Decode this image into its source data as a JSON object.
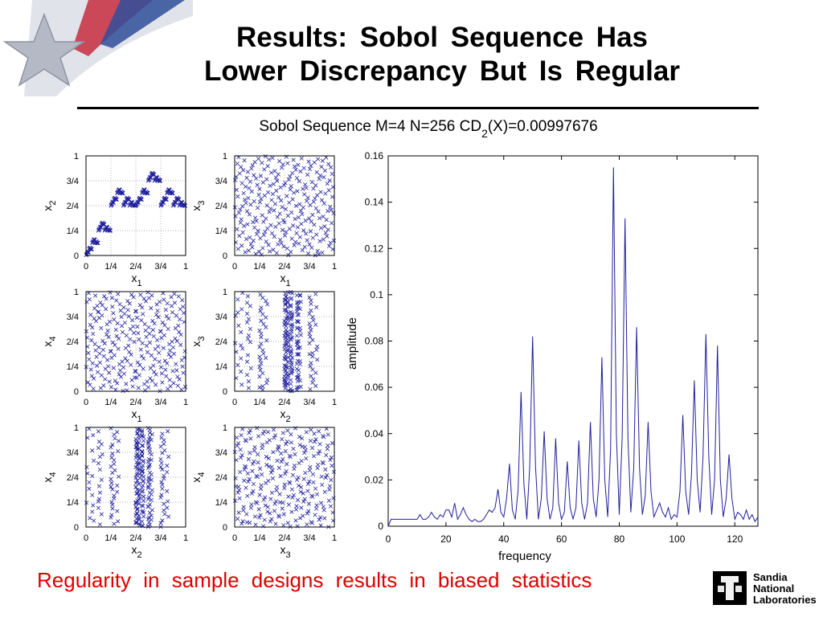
{
  "slide": {
    "title_line1": "Results:  Sobol  Sequence  Has",
    "title_line2": "Lower  Discrepancy  But  Is  Regular",
    "footer": "Regularity  in  sample  designs  results  in  biased  statistics",
    "logo": {
      "line1": "Sandia",
      "line2": "National",
      "line3": "Laboratories"
    }
  },
  "figure": {
    "title_main": "Sobol Sequence M=4 N=256 CD",
    "title_sub": "2",
    "title_tail": "(X)=0.00997676"
  },
  "colors": {
    "marker": "#1f1f9e",
    "line": "#1f1f9e",
    "title": "#000000",
    "footer": "#e00000"
  },
  "chart_data": [
    {
      "type": "scatter",
      "marker": "x",
      "n_points": 256,
      "xlabel": "x",
      "xlabel_sub": "1",
      "ylabel": "x",
      "ylabel_sub": "2",
      "xlim": [
        0,
        1
      ],
      "ylim": [
        0,
        1
      ],
      "ticks": [
        "0",
        "1/4",
        "2/4",
        "3/4",
        "1"
      ],
      "grid": "dotted"
    },
    {
      "type": "scatter",
      "marker": "x",
      "n_points": 256,
      "xlabel": "x",
      "xlabel_sub": "1",
      "ylabel": "x",
      "ylabel_sub": "3",
      "xlim": [
        0,
        1
      ],
      "ylim": [
        0,
        1
      ],
      "ticks": [
        "0",
        "1/4",
        "2/4",
        "3/4",
        "1"
      ],
      "grid": "dotted"
    },
    {
      "type": "scatter",
      "marker": "x",
      "n_points": 256,
      "xlabel": "x",
      "xlabel_sub": "1",
      "ylabel": "x",
      "ylabel_sub": "4",
      "xlim": [
        0,
        1
      ],
      "ylim": [
        0,
        1
      ],
      "ticks": [
        "0",
        "1/4",
        "2/4",
        "3/4",
        "1"
      ],
      "grid": "dotted"
    },
    {
      "type": "scatter",
      "marker": "x",
      "n_points": 256,
      "xlabel": "x",
      "xlabel_sub": "2",
      "ylabel": "x",
      "ylabel_sub": "3",
      "xlim": [
        0,
        1
      ],
      "ylim": [
        0,
        1
      ],
      "ticks": [
        "0",
        "1/4",
        "2/4",
        "3/4",
        "1"
      ],
      "grid": "dotted"
    },
    {
      "type": "scatter",
      "marker": "x",
      "n_points": 256,
      "xlabel": "x",
      "xlabel_sub": "2",
      "ylabel": "x",
      "ylabel_sub": "4",
      "xlim": [
        0,
        1
      ],
      "ylim": [
        0,
        1
      ],
      "ticks": [
        "0",
        "1/4",
        "2/4",
        "3/4",
        "1"
      ],
      "grid": "dotted"
    },
    {
      "type": "scatter",
      "marker": "x",
      "n_points": 256,
      "xlabel": "x",
      "xlabel_sub": "3",
      "ylabel": "x",
      "ylabel_sub": "4",
      "xlim": [
        0,
        1
      ],
      "ylim": [
        0,
        1
      ],
      "ticks": [
        "0",
        "1/4",
        "2/4",
        "3/4",
        "1"
      ],
      "grid": "dotted"
    },
    {
      "type": "line",
      "xlabel": "frequency",
      "ylabel": "amplitude",
      "xlim": [
        0,
        128
      ],
      "ylim": [
        0,
        0.16
      ],
      "xticks": [
        0,
        20,
        40,
        60,
        80,
        100,
        120
      ],
      "yticks": [
        0,
        0.02,
        0.04,
        0.06,
        0.08,
        0.1,
        0.12,
        0.14,
        0.16
      ],
      "ytick_labels": [
        "0",
        "0.02",
        "0.04",
        "0.06",
        "0.08",
        "0.1",
        "0.12",
        "0.14",
        "0.16"
      ],
      "x": [
        0,
        1,
        2,
        3,
        4,
        5,
        6,
        7,
        8,
        9,
        10,
        11,
        12,
        13,
        14,
        15,
        16,
        17,
        18,
        19,
        20,
        21,
        22,
        23,
        24,
        25,
        26,
        27,
        28,
        29,
        30,
        31,
        32,
        33,
        34,
        35,
        36,
        37,
        38,
        39,
        40,
        41,
        42,
        43,
        44,
        45,
        46,
        47,
        48,
        49,
        50,
        51,
        52,
        53,
        54,
        55,
        56,
        57,
        58,
        59,
        60,
        61,
        62,
        63,
        64,
        65,
        66,
        67,
        68,
        69,
        70,
        71,
        72,
        73,
        74,
        75,
        76,
        77,
        78,
        79,
        80,
        81,
        82,
        83,
        84,
        85,
        86,
        87,
        88,
        89,
        90,
        91,
        92,
        93,
        94,
        95,
        96,
        97,
        98,
        99,
        100,
        101,
        102,
        103,
        104,
        105,
        106,
        107,
        108,
        109,
        110,
        111,
        112,
        113,
        114,
        115,
        116,
        117,
        118,
        119,
        120,
        121,
        122,
        123,
        124,
        125,
        126,
        127,
        128
      ],
      "y": [
        0,
        0.003,
        0.003,
        0.003,
        0.003,
        0.003,
        0.003,
        0.003,
        0.003,
        0.003,
        0.003,
        0.005,
        0.003,
        0.003,
        0.004,
        0.006,
        0.004,
        0.003,
        0.005,
        0.004,
        0.007,
        0.007,
        0.004,
        0.01,
        0.003,
        0.005,
        0.008,
        0.005,
        0.003,
        0.002,
        0.003,
        0.002,
        0.002,
        0.003,
        0.005,
        0.007,
        0.006,
        0.008,
        0.016,
        0.006,
        0.004,
        0.012,
        0.027,
        0.007,
        0.003,
        0.016,
        0.058,
        0.018,
        0.003,
        0.026,
        0.082,
        0.026,
        0.003,
        0.012,
        0.041,
        0.012,
        0.003,
        0.008,
        0.038,
        0.01,
        0.003,
        0.006,
        0.028,
        0.008,
        0.003,
        0.008,
        0.037,
        0.01,
        0.003,
        0.01,
        0.045,
        0.012,
        0.004,
        0.02,
        0.073,
        0.02,
        0.004,
        0.033,
        0.155,
        0.04,
        0.005,
        0.038,
        0.133,
        0.038,
        0.006,
        0.025,
        0.086,
        0.025,
        0.005,
        0.013,
        0.045,
        0.015,
        0.004,
        0.007,
        0.01,
        0.006,
        0.004,
        0.008,
        0.003,
        0.005,
        0.004,
        0.015,
        0.048,
        0.015,
        0.005,
        0.022,
        0.063,
        0.02,
        0.006,
        0.03,
        0.083,
        0.03,
        0.005,
        0.02,
        0.078,
        0.02,
        0.004,
        0.012,
        0.031,
        0.012,
        0.003,
        0.006,
        0.005,
        0.003,
        0.007,
        0.003,
        0.005,
        0.002,
        0.004
      ]
    }
  ]
}
